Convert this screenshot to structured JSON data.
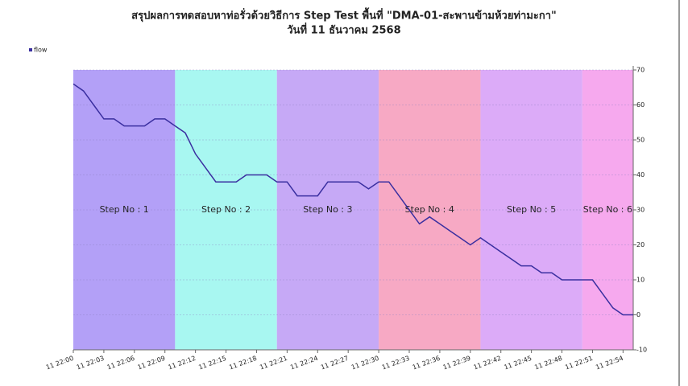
{
  "chart_data": {
    "type": "line",
    "title": "สรุปผลการทดสอบหาท่อรั่วด้วยวิธีการ Step Test พื้นที่ \"DMA-01-สะพานข้ามห้วยท่ามะกา\"",
    "subtitle": "วันที่ 11 ธันวาคม 2568",
    "categories": [
      "11 22:00",
      null,
      null,
      "11 22:03",
      null,
      null,
      "11 22:06",
      null,
      null,
      "11 22:09",
      null,
      null,
      "11 22:12",
      null,
      null,
      "11 22:15",
      null,
      null,
      "11 22:18",
      null,
      null,
      "11 22:21",
      null,
      null,
      "11 22:24",
      null,
      null,
      "11 22:27",
      null,
      null,
      "11 22:30",
      null,
      null,
      "11 22:33",
      null,
      null,
      "11 22:36",
      null,
      null,
      "11 22:39",
      null,
      null,
      "11 22:42",
      null,
      null,
      "11 22:45",
      null,
      null,
      "11 22:48",
      null,
      null,
      "11 22:51",
      null,
      null,
      "11 22:54",
      null
    ],
    "series": [
      {
        "name": "flow",
        "color": "#3a2fa0",
        "values": [
          66,
          64,
          60,
          56,
          56,
          54,
          54,
          54,
          56,
          56,
          54,
          52,
          46,
          42,
          38,
          38,
          38,
          40,
          40,
          40,
          38,
          38,
          34,
          34,
          34,
          38,
          38,
          38,
          38,
          36,
          38,
          38,
          34,
          30,
          26,
          28,
          26,
          24,
          22,
          20,
          22,
          20,
          18,
          16,
          14,
          14,
          12,
          12,
          10,
          10,
          10,
          10,
          6,
          2,
          0,
          0
        ]
      }
    ],
    "bands": [
      {
        "label": "Step No : 1",
        "from": 0,
        "to": 10,
        "color": "#b3a0f7"
      },
      {
        "label": "Step No : 2",
        "from": 10,
        "to": 20,
        "color": "#a8f7f1"
      },
      {
        "label": "Step No : 3",
        "from": 20,
        "to": 30,
        "color": "#c6a9f6"
      },
      {
        "label": "Step No : 4",
        "from": 30,
        "to": 40,
        "color": "#f7a9c4"
      },
      {
        "label": "Step No : 5",
        "from": 40,
        "to": 50,
        "color": "#dcabf8"
      },
      {
        "label": "Step No : 6",
        "from": 50,
        "to": 55,
        "color": "#f6a9ee"
      }
    ],
    "ylim": [
      -10,
      70
    ],
    "yticks": [
      -10,
      0,
      10,
      20,
      30,
      40,
      50,
      60,
      70
    ],
    "grid": true,
    "legend": "top-left"
  }
}
